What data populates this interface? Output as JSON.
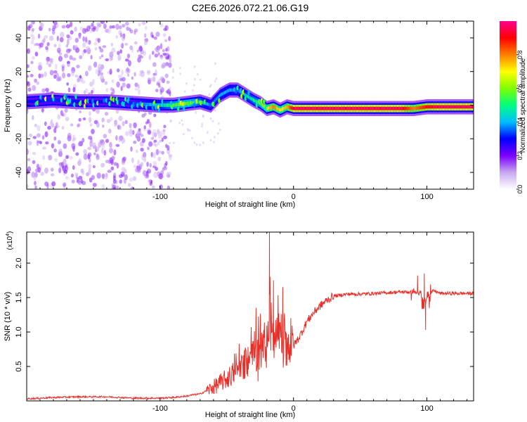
{
  "title": "C2E6.2026.072.21.06.G19",
  "chart_data": [
    {
      "type": "heatmap",
      "name": "spectrogram",
      "xlabel": "Height of straight line (km)",
      "ylabel": "Frequency (Hz)",
      "xlim": [
        -200,
        135
      ],
      "ylim": [
        -50,
        50
      ],
      "xticks": [
        -100,
        0,
        100
      ],
      "xtick_labels": [
        "-100",
        "0",
        "100"
      ],
      "yticks": [
        -40,
        -20,
        0,
        20,
        40
      ],
      "ytick_labels": [
        "-40",
        "-20",
        "0",
        "20",
        "40"
      ],
      "colorbar": {
        "label": "Normalized spectral amplitude",
        "range": [
          0,
          1
        ],
        "ticks": [
          0,
          0.2,
          0.4,
          0.6,
          0.8
        ],
        "tick_labels": [
          "0.0",
          "0.2",
          "0.4",
          "0.6",
          "0.8"
        ],
        "colors": [
          "#ffffff",
          "#c9a8f0",
          "#7a00ff",
          "#0000ff",
          "#00bfff",
          "#00ff80",
          "#7fff00",
          "#ffff00",
          "#ff8000",
          "#ff0000",
          "#ff0090"
        ]
      },
      "ridge": {
        "x": [
          -200,
          -180,
          -160,
          -140,
          -120,
          -100,
          -90,
          -80,
          -70,
          -62,
          -55,
          -48,
          -42,
          -36,
          -30,
          -25,
          -20,
          -15,
          -10,
          -5,
          0,
          20,
          50,
          80,
          90,
          100,
          110,
          135
        ],
        "y": [
          2,
          3,
          2,
          2,
          1,
          0,
          0,
          1,
          2,
          0,
          6,
          9,
          9,
          6,
          3,
          1,
          -2,
          -1,
          -3,
          -1,
          -2,
          -2,
          -2,
          -2,
          -2,
          -1,
          -1,
          -1
        ],
        "amplitude": [
          0.3,
          0.32,
          0.3,
          0.3,
          0.32,
          0.45,
          0.55,
          0.6,
          0.5,
          0.35,
          0.4,
          0.4,
          0.35,
          0.45,
          0.5,
          0.55,
          0.7,
          0.8,
          0.7,
          0.75,
          0.95,
          0.95,
          0.95,
          0.95,
          0.8,
          0.9,
          0.95,
          0.95
        ]
      },
      "noise_region_x": [
        -200,
        -92
      ]
    },
    {
      "type": "line",
      "name": "snr",
      "xlabel": "Height of straight line (km)",
      "ylabel": "SNR (10 * v/v)",
      "scale_label_base": "(x10",
      "scale_label_exp": "4",
      "scale_label_end": ")",
      "xlim": [
        -200,
        135
      ],
      "ylim": [
        0,
        2.45
      ],
      "xticks": [
        -100,
        0,
        100
      ],
      "xtick_labels": [
        "-100",
        "0",
        "100"
      ],
      "yticks": [
        0.5,
        1.0,
        1.5,
        2.0
      ],
      "ytick_labels": [
        "0.5",
        "1.0",
        "1.5",
        "2.0"
      ],
      "color": "#e8302a",
      "series": [
        {
          "name": "SNR",
          "x": [
            -200,
            -180,
            -160,
            -140,
            -120,
            -100,
            -90,
            -80,
            -75,
            -70,
            -65,
            -60,
            -55,
            -50,
            -45,
            -40,
            -35,
            -30,
            -25,
            -20,
            -18,
            -15,
            -12,
            -10,
            -5,
            0,
            5,
            10,
            15,
            20,
            25,
            30,
            40,
            50,
            60,
            70,
            80,
            90,
            95,
            98,
            100,
            105,
            110,
            120,
            135
          ],
          "y": [
            0.03,
            0.05,
            0.06,
            0.06,
            0.04,
            0.04,
            0.05,
            0.07,
            0.09,
            0.1,
            0.15,
            0.2,
            0.26,
            0.32,
            0.4,
            0.48,
            0.56,
            0.64,
            0.7,
            0.8,
            1.2,
            0.8,
            0.9,
            0.75,
            0.8,
            0.8,
            0.95,
            1.15,
            1.28,
            1.38,
            1.46,
            1.52,
            1.55,
            1.55,
            1.56,
            1.57,
            1.58,
            1.58,
            1.55,
            1.45,
            1.5,
            1.6,
            1.56,
            1.56,
            1.56
          ]
        }
      ],
      "spikes": [
        {
          "x": -18,
          "y": 2.45
        },
        {
          "x": -15,
          "y": 1.75
        },
        {
          "x": -8,
          "y": 1.65
        },
        {
          "x": -2,
          "y": 1.2
        },
        {
          "x": 93,
          "y": 1.82
        },
        {
          "x": 98,
          "y": 1.85
        },
        {
          "x": 99,
          "y": 1.03
        }
      ]
    }
  ]
}
